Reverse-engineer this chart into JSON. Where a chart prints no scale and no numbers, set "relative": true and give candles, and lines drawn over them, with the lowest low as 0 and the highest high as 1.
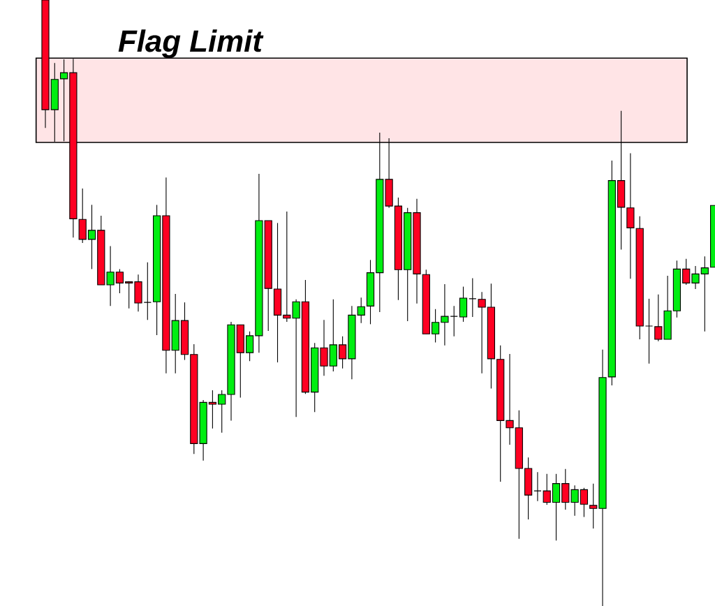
{
  "chart_data": {
    "type": "candlestick",
    "relative": true,
    "categories": [
      null,
      null,
      null,
      null,
      null,
      null,
      null,
      null,
      null,
      null,
      null,
      null,
      null,
      null,
      null,
      null,
      null,
      null,
      null,
      null,
      null,
      null,
      null,
      null,
      null,
      null,
      null,
      null,
      null,
      null,
      null,
      null,
      null,
      null,
      null,
      null,
      null,
      null,
      null,
      null,
      null,
      null,
      null,
      null,
      null,
      null,
      null,
      null,
      null,
      null,
      null,
      null,
      null,
      null,
      null,
      null,
      null,
      null,
      null,
      null,
      null,
      null,
      null,
      null,
      null,
      null,
      null,
      null,
      null,
      null,
      null,
      null,
      null
    ],
    "ohlc": [
      [
        1,
        1,
        0.789,
        0.819
      ],
      [
        0.819,
        0.896,
        0.766,
        0.869
      ],
      [
        0.87,
        0.902,
        0.767,
        0.88
      ],
      [
        0.88,
        0.903,
        0.608,
        0.639
      ],
      [
        0.638,
        0.689,
        0.599,
        0.605
      ],
      [
        0.605,
        0.662,
        0.556,
        0.62
      ],
      [
        0.62,
        0.644,
        0.53,
        0.53
      ],
      [
        0.53,
        0.594,
        0.495,
        0.551
      ],
      [
        0.551,
        0.556,
        0.516,
        0.533
      ],
      [
        0.535,
        0.536,
        0.491,
        0.533
      ],
      [
        0.535,
        0.547,
        0.486,
        0.5
      ],
      [
        0.501,
        0.567,
        0.472,
        0.501
      ],
      [
        0.502,
        0.662,
        0.447,
        0.644
      ],
      [
        0.644,
        0.707,
        0.384,
        0.422
      ],
      [
        0.422,
        0.515,
        0.384,
        0.471
      ],
      [
        0.471,
        0.501,
        0.406,
        0.415
      ],
      [
        0.415,
        0.432,
        0.251,
        0.268
      ],
      [
        0.268,
        0.34,
        0.24,
        0.336
      ],
      [
        0.336,
        0.356,
        0.293,
        0.333
      ],
      [
        0.333,
        0.356,
        0.286,
        0.349
      ],
      [
        0.349,
        0.469,
        0.306,
        0.464
      ],
      [
        0.464,
        0.464,
        0.344,
        0.418
      ],
      [
        0.418,
        0.453,
        0.404,
        0.446
      ],
      [
        0.446,
        0.713,
        0.418,
        0.636
      ],
      [
        0.636,
        0.636,
        0.454,
        0.524
      ],
      [
        0.523,
        0.632,
        0.402,
        0.48
      ],
      [
        0.48,
        0.651,
        0.469,
        0.475
      ],
      [
        0.475,
        0.506,
        0.312,
        0.502
      ],
      [
        0.502,
        0.538,
        0.35,
        0.353
      ],
      [
        0.353,
        0.434,
        0.32,
        0.426
      ],
      [
        0.426,
        0.472,
        0.38,
        0.396
      ],
      [
        0.396,
        0.506,
        0.387,
        0.431
      ],
      [
        0.431,
        0.445,
        0.392,
        0.408
      ],
      [
        0.408,
        0.495,
        0.374,
        0.48
      ],
      [
        0.48,
        0.509,
        0.467,
        0.494
      ],
      [
        0.495,
        0.571,
        0.465,
        0.55
      ],
      [
        0.55,
        0.781,
        0.485,
        0.704
      ],
      [
        0.704,
        0.772,
        0.657,
        0.66
      ],
      [
        0.66,
        0.674,
        0.505,
        0.555
      ],
      [
        0.555,
        0.657,
        0.47,
        0.649
      ],
      [
        0.649,
        0.672,
        0.499,
        0.548
      ],
      [
        0.547,
        0.555,
        0.449,
        0.449
      ],
      [
        0.449,
        0.49,
        0.435,
        0.468
      ],
      [
        0.468,
        0.531,
        0.43,
        0.478
      ],
      [
        0.478,
        0.495,
        0.445,
        0.478
      ],
      [
        0.477,
        0.527,
        0.469,
        0.508
      ],
      [
        0.507,
        0.541,
        0.477,
        0.507
      ],
      [
        0.506,
        0.518,
        0.384,
        0.493
      ],
      [
        0.493,
        0.532,
        0.359,
        0.408
      ],
      [
        0.407,
        0.43,
        0.205,
        0.306
      ],
      [
        0.306,
        0.416,
        0.266,
        0.294
      ],
      [
        0.294,
        0.323,
        0.111,
        0.227
      ],
      [
        0.227,
        0.245,
        0.143,
        0.183
      ],
      [
        0.19,
        0.221,
        0.173,
        0.19
      ],
      [
        0.19,
        0.218,
        0.167,
        0.171
      ],
      [
        0.171,
        0.218,
        0.108,
        0.202
      ],
      [
        0.202,
        0.226,
        0.159,
        0.171
      ],
      [
        0.171,
        0.199,
        0.149,
        0.192
      ],
      [
        0.192,
        0.195,
        0.147,
        0.168
      ],
      [
        0.166,
        0.202,
        0.128,
        0.161
      ],
      [
        0.161,
        0.423,
        0,
        0.377
      ],
      [
        0.378,
        0.735,
        0.364,
        0.702
      ],
      [
        0.702,
        0.817,
        0.588,
        0.658
      ],
      [
        0.657,
        0.747,
        0.54,
        0.624
      ],
      [
        0.623,
        0.643,
        0.44,
        0.462
      ],
      [
        0.462,
        0.507,
        0.4,
        0.462
      ],
      [
        0.461,
        0.514,
        0.437,
        0.44
      ],
      [
        0.44,
        0.545,
        0.44,
        0.487
      ],
      [
        0.487,
        0.57,
        0.476,
        0.556
      ],
      [
        0.556,
        0.573,
        0.53,
        0.533
      ],
      [
        0.533,
        0.561,
        0.523,
        0.548
      ],
      [
        0.548,
        0.577,
        0.453,
        0.558
      ],
      [
        0.559,
        0.661,
        0.559,
        0.661
      ]
    ],
    "colors": [
      "#ff0022",
      "#00ee11",
      "#00ee11",
      "#ff0022",
      "#ff0022",
      "#00ee11",
      "#ff0022",
      "#00ee11",
      "#ff0022",
      "#ff0022",
      "#ff0022",
      "#000000",
      "#00ee11",
      "#ff0022",
      "#00ee11",
      "#ff0022",
      "#ff0022",
      "#00ee11",
      "#ff0022",
      "#00ee11",
      "#00ee11",
      "#ff0022",
      "#00ee11",
      "#00ee11",
      "#ff0022",
      "#ff0022",
      "#ff0022",
      "#00ee11",
      "#ff0022",
      "#00ee11",
      "#ff0022",
      "#00ee11",
      "#ff0022",
      "#00ee11",
      "#00ee11",
      "#00ee11",
      "#00ee11",
      "#ff0022",
      "#ff0022",
      "#00ee11",
      "#ff0022",
      "#ff0022",
      "#00ee11",
      "#00ee11",
      "#000000",
      "#00ee11",
      "#000000",
      "#ff0022",
      "#ff0022",
      "#ff0022",
      "#ff0022",
      "#ff0022",
      "#ff0022",
      "#000000",
      "#ff0022",
      "#00ee11",
      "#ff0022",
      "#00ee11",
      "#ff0022",
      "#ff0022",
      "#00ee11",
      "#00ee11",
      "#ff0022",
      "#ff0022",
      "#ff0022",
      "#000000",
      "#ff0022",
      "#00ee11",
      "#00ee11",
      "#ff0022",
      "#00ee11",
      "#00ee11",
      "#00ee11"
    ],
    "bands": [
      {
        "axis": "y",
        "from": 0.765,
        "to": 0.904,
        "label": "Flag Limit",
        "color": "#ffe4e6"
      }
    ]
  }
}
